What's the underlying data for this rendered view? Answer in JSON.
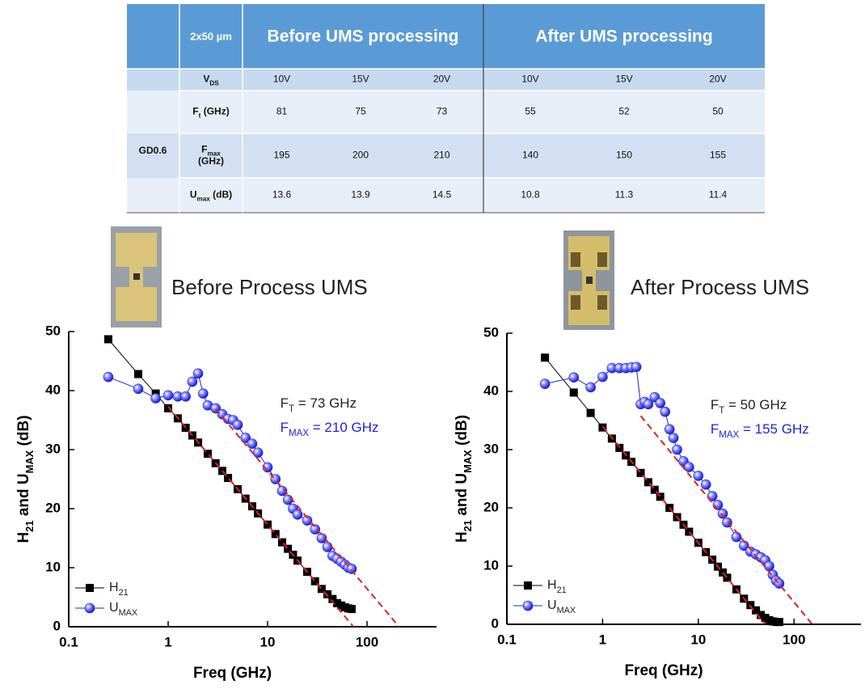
{
  "table": {
    "size_label": "2x50 µm",
    "groups": [
      "Before UMS processing",
      "After UMS processing"
    ],
    "row_group": "GD0.6",
    "rows": [
      {
        "label": [
          {
            "text": "V"
          },
          {
            "text": "DS",
            "sub": true
          }
        ],
        "cells": [
          "10V",
          "15V",
          "20V",
          "10V",
          "15V",
          "20V"
        ]
      },
      {
        "label": [
          {
            "text": "F"
          },
          {
            "text": "t",
            "sub": true
          },
          {
            "text": " (GHz)"
          }
        ],
        "cells": [
          81,
          75,
          73,
          55,
          52,
          50
        ]
      },
      {
        "label": [
          {
            "text": "F"
          },
          {
            "text": "max",
            "sub": true
          },
          {
            "text": "(GHz)",
            "break": true
          }
        ],
        "cells": [
          195,
          200,
          210,
          140,
          150,
          155
        ]
      },
      {
        "label": [
          {
            "text": "U"
          },
          {
            "text": "max",
            "sub": true
          },
          {
            "text": " (dB)"
          }
        ],
        "cells": [
          13.6,
          13.9,
          14.5,
          10.8,
          11.3,
          11.4
        ]
      }
    ]
  },
  "chart_data": [
    {
      "type": "scatter-line",
      "caption": "Before Process UMS",
      "log_x": true,
      "xlabel": "Freq (GHz)",
      "ylabel": [
        {
          "text": "H"
        },
        {
          "text": "21",
          "sub": true
        },
        {
          "text": " and U"
        },
        {
          "text": "MAX",
          "sub": true
        },
        {
          "text": " (dB)"
        }
      ],
      "xlim": [
        0.1,
        500
      ],
      "xticks": [
        0.1,
        1,
        10,
        100
      ],
      "ylim": [
        0,
        50
      ],
      "yticks": [
        0,
        10,
        20,
        30,
        40,
        50
      ],
      "legend": "bottom-left",
      "series": [
        {
          "name": [
            {
              "text": "H"
            },
            {
              "text": "21",
              "sub": true
            }
          ],
          "color": "#000000",
          "marker": "square",
          "x": [
            0.25,
            0.5,
            0.75,
            1,
            1.25,
            1.5,
            1.75,
            2,
            2.5,
            3,
            3.5,
            4,
            5,
            6,
            7,
            8,
            10,
            12,
            14,
            16,
            18,
            20,
            25,
            30,
            35,
            40,
            45,
            50,
            55,
            60,
            65,
            70
          ],
          "values": [
            48.7,
            42.8,
            39.5,
            37.0,
            35.3,
            33.7,
            32.4,
            31.2,
            29.3,
            27.7,
            26.4,
            25.2,
            23.3,
            21.7,
            20.4,
            19.2,
            17.3,
            15.7,
            14.3,
            13.2,
            12.2,
            11.2,
            9.3,
            7.7,
            6.4,
            5.5,
            4.7,
            4.0,
            3.6,
            3.3,
            3.1,
            3.0
          ]
        },
        {
          "name": [
            {
              "text": "U"
            },
            {
              "text": "MAX",
              "sub": true
            }
          ],
          "color": "#2222dd",
          "marker": "circle",
          "x": [
            0.25,
            0.5,
            0.75,
            1,
            1.25,
            1.5,
            1.75,
            2,
            2.25,
            2.5,
            3,
            3.5,
            4,
            4.5,
            5,
            6,
            7,
            8,
            10,
            12,
            14,
            16,
            18,
            20,
            25,
            30,
            35,
            40,
            45,
            50,
            55,
            60,
            65,
            70
          ],
          "values": [
            42.3,
            40.3,
            38.7,
            39.2,
            39.0,
            39.0,
            41.5,
            42.9,
            39.5,
            37.5,
            37.0,
            36.0,
            35.2,
            35.0,
            34.2,
            32.0,
            31.0,
            29.5,
            27.0,
            25.0,
            23.0,
            21.5,
            20.0,
            19.0,
            18.0,
            16.5,
            15.0,
            13.5,
            12.0,
            11.5,
            11.0,
            10.5,
            10.0,
            9.8
          ]
        }
      ],
      "fit_lines": {
        "color": "#e02020",
        "lines": [
          {
            "x": [
              1,
              73
            ],
            "values": [
              37.3,
              0
            ]
          },
          {
            "x": [
              3,
              210
            ],
            "values": [
              36.9,
              0
            ]
          }
        ]
      },
      "annotations": [
        {
          "color": "#222222",
          "parts": [
            {
              "text": "F"
            },
            {
              "text": "T",
              "sub": true
            },
            {
              "text": " = 73 GHz"
            }
          ]
        },
        {
          "color": "#2222dd",
          "parts": [
            {
              "text": "F"
            },
            {
              "text": "MAX",
              "sub": true
            },
            {
              "text": " = 210 GHz"
            }
          ]
        }
      ]
    },
    {
      "type": "scatter-line",
      "caption": "After Process UMS",
      "log_x": true,
      "xlabel": "Freq (GHz)",
      "ylabel": [
        {
          "text": "H"
        },
        {
          "text": "21",
          "sub": true
        },
        {
          "text": " and U"
        },
        {
          "text": "MAX",
          "sub": true
        },
        {
          "text": " (dB)"
        }
      ],
      "xlim": [
        0.1,
        500
      ],
      "xticks": [
        0.1,
        1,
        10,
        100
      ],
      "ylim": [
        0,
        50
      ],
      "yticks": [
        0,
        10,
        20,
        30,
        40,
        50
      ],
      "legend": "bottom-left",
      "series": [
        {
          "name": [
            {
              "text": "H"
            },
            {
              "text": "21",
              "sub": true
            }
          ],
          "color": "#000000",
          "marker": "square",
          "x": [
            0.25,
            0.5,
            0.75,
            1,
            1.25,
            1.5,
            1.75,
            2,
            2.5,
            3,
            3.5,
            4,
            5,
            6,
            7,
            8,
            10,
            12,
            14,
            16,
            18,
            20,
            25,
            30,
            35,
            40,
            45,
            50,
            55,
            60,
            65,
            70
          ],
          "values": [
            45.8,
            39.8,
            36.3,
            33.8,
            31.9,
            30.3,
            29.0,
            27.9,
            26.0,
            24.4,
            23.1,
            21.9,
            20.0,
            18.4,
            17.1,
            15.9,
            14.0,
            12.4,
            11.1,
            9.9,
            8.9,
            8.0,
            6.0,
            4.4,
            3.3,
            2.4,
            1.6,
            1.1,
            0.7,
            0.5,
            0.4,
            0.4
          ]
        },
        {
          "name": [
            {
              "text": "U"
            },
            {
              "text": "MAX",
              "sub": true
            }
          ],
          "color": "#2222dd",
          "marker": "circle",
          "x": [
            0.25,
            0.5,
            0.75,
            1,
            1.25,
            1.5,
            1.75,
            2,
            2.25,
            2.5,
            2.75,
            3,
            3.5,
            4,
            4.5,
            5,
            5.5,
            6,
            7,
            8,
            10,
            12,
            14,
            16,
            18,
            20,
            25,
            30,
            35,
            40,
            45,
            50,
            55,
            60,
            65,
            70
          ],
          "values": [
            41.3,
            42.4,
            40.7,
            42.5,
            44.0,
            44.0,
            44.0,
            44.1,
            44.2,
            37.8,
            38.2,
            37.8,
            39.0,
            38.0,
            36.5,
            33.5,
            32.0,
            30.0,
            28.0,
            27.0,
            25.5,
            24.0,
            22.0,
            20.5,
            19.0,
            17.5,
            15.0,
            13.5,
            12.5,
            12.0,
            11.5,
            11.0,
            10.0,
            8.5,
            7.5,
            7.0
          ]
        }
      ],
      "fit_lines": {
        "color": "#e02020",
        "lines": [
          {
            "x": [
              1,
              50
            ],
            "values": [
              34,
              0
            ]
          },
          {
            "x": [
              2.5,
              155
            ],
            "values": [
              35.8,
              0
            ]
          }
        ]
      },
      "annotations": [
        {
          "color": "#222222",
          "parts": [
            {
              "text": "F"
            },
            {
              "text": "T",
              "sub": true
            },
            {
              "text": " = 50 GHz"
            }
          ]
        },
        {
          "color": "#2222dd",
          "parts": [
            {
              "text": "F"
            },
            {
              "text": "MAX",
              "sub": true
            },
            {
              "text": " = 155 GHz"
            }
          ]
        }
      ]
    }
  ]
}
